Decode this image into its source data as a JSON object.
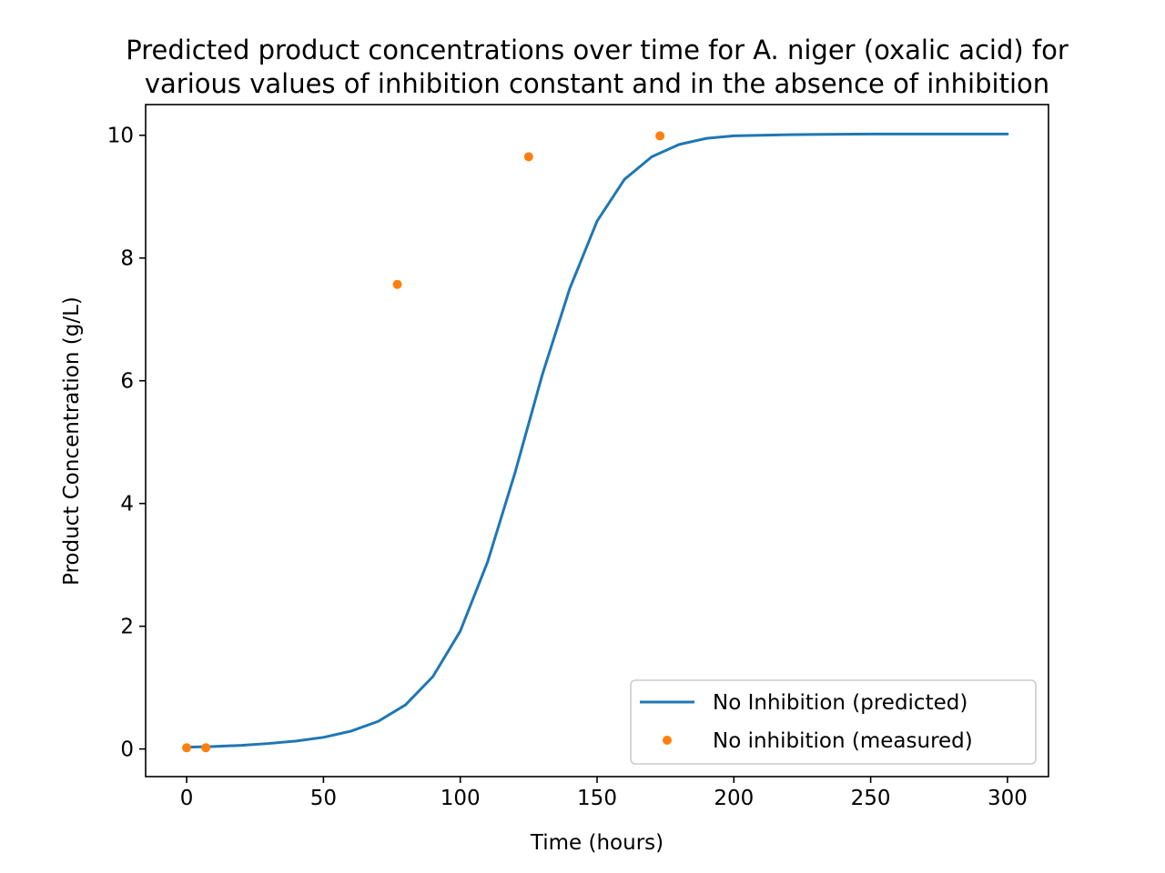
{
  "chart_data": {
    "type": "line",
    "title": "Predicted product concentrations over time for A. niger (oxalic acid) for various values of inhibition constant and in the absence of inhibition",
    "title_lines": [
      "Predicted product concentrations over time for A. niger (oxalic acid) for",
      "various values of inhibition constant and in the absence of inhibition"
    ],
    "xlabel": "Time (hours)",
    "ylabel": "Product Concentration (g/L)",
    "xlim": [
      -15,
      315
    ],
    "ylim": [
      -0.45,
      10.5
    ],
    "xticks": [
      0,
      50,
      100,
      150,
      200,
      250,
      300
    ],
    "yticks": [
      0,
      2,
      4,
      6,
      8,
      10
    ],
    "grid": false,
    "legend_position": "lower-right",
    "series": [
      {
        "name": "No Inhibition (predicted)",
        "style": "line",
        "color": "#1f77b4",
        "x": [
          0,
          10,
          20,
          30,
          40,
          50,
          60,
          70,
          80,
          90,
          100,
          110,
          120,
          125,
          130,
          140,
          150,
          160,
          170,
          180,
          190,
          200,
          220,
          250,
          300
        ],
        "y": [
          0.03,
          0.04,
          0.06,
          0.09,
          0.13,
          0.19,
          0.29,
          0.45,
          0.72,
          1.18,
          1.92,
          3.05,
          4.5,
          5.3,
          6.1,
          7.5,
          8.6,
          9.28,
          9.65,
          9.85,
          9.95,
          9.99,
          10.01,
          10.02,
          10.02
        ]
      },
      {
        "name": "No inhibition (measured)",
        "style": "scatter",
        "color": "#ff7f0e",
        "x": [
          0,
          7,
          77,
          125,
          173
        ],
        "y": [
          0.02,
          0.02,
          7.57,
          9.65,
          9.99
        ]
      }
    ]
  }
}
